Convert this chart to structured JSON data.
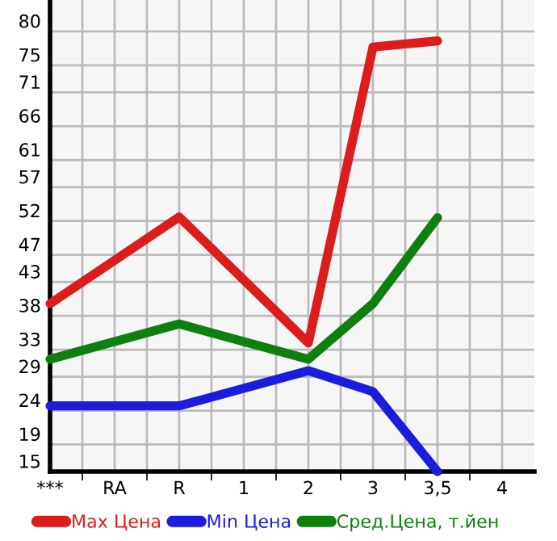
{
  "chart_data": {
    "type": "line",
    "categories": [
      "***",
      "RA",
      "R",
      "1",
      "2",
      "3",
      "3,5",
      "4"
    ],
    "series": [
      {
        "name": "Max Цена",
        "color": "#dd1c1c",
        "values": [
          39.8,
          null,
          52.6,
          null,
          34.0,
          77.7,
          78.6,
          null
        ]
      },
      {
        "name": "Min Цена",
        "color": "#1c1cdd",
        "values": [
          24.7,
          null,
          24.7,
          null,
          29.9,
          26.8,
          15,
          null
        ]
      },
      {
        "name": "Сред.Цена, т.йен",
        "color": "#0e800e",
        "values": [
          31.6,
          null,
          36.8,
          null,
          31.6,
          39.8,
          52.5,
          null
        ]
      }
    ],
    "ylim": [
      15,
      84.64
    ],
    "yticks": [
      15,
      19,
      24,
      29,
      33,
      38,
      43,
      47,
      52,
      57,
      61,
      66,
      71,
      75,
      80
    ],
    "grid": true,
    "legend": "bottom",
    "marker": "none",
    "line_style": "solid"
  }
}
